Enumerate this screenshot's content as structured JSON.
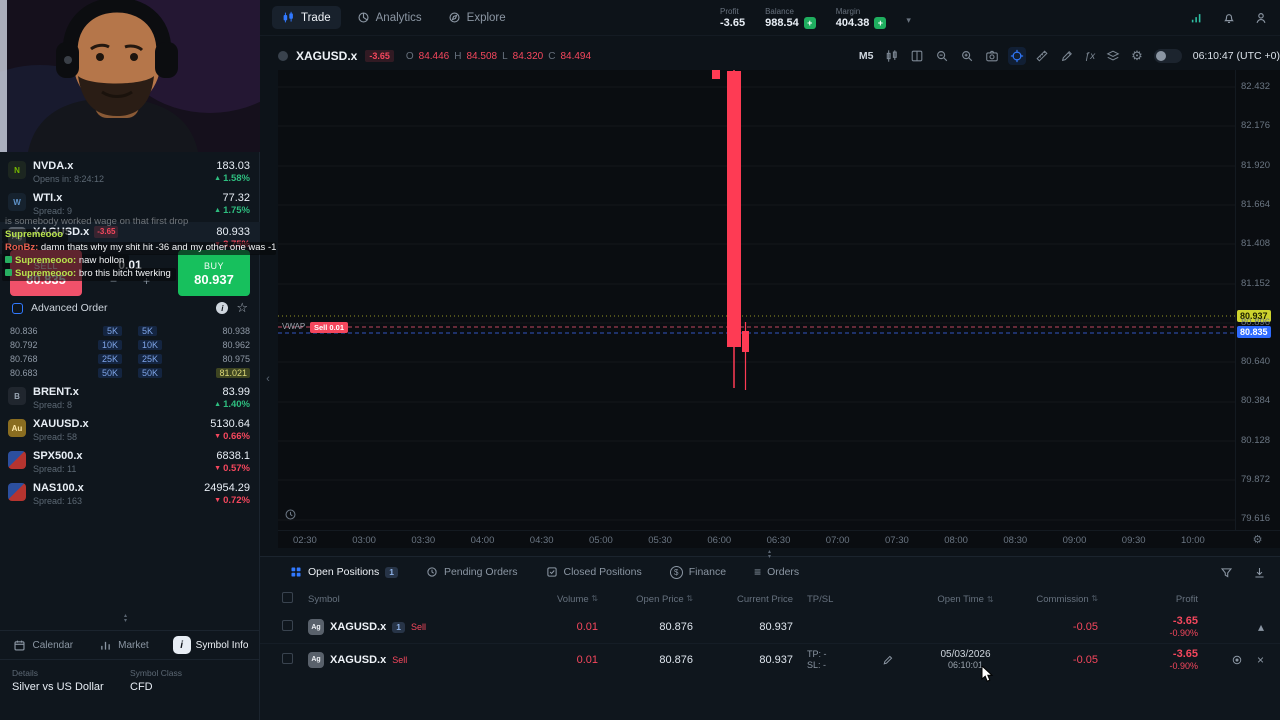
{
  "colors": {
    "accent_blue": "#3179ff",
    "buy_green": "#17c05d",
    "sell_red": "#f0516a",
    "loss_red": "#f5475d",
    "gain_green": "#2ebd7f",
    "ask_tag_yellow": "#cdd32e",
    "bid_tag_blue": "#2f6bff"
  },
  "topbar": {
    "nav": [
      {
        "label": "Trade"
      },
      {
        "label": "Analytics"
      },
      {
        "label": "Explore"
      }
    ],
    "stats": {
      "profit_label": "Profit",
      "profit": "-3.65",
      "balance_label": "Balance",
      "balance": "988.54",
      "margin_label": "Margin",
      "margin": "404.38"
    }
  },
  "watchlist": [
    {
      "symbol": "NVDA.x",
      "price": "183.03",
      "change": "1.58%",
      "sub": "Opens in: 8:24:12",
      "icon": "N"
    },
    {
      "symbol": "WTI.x",
      "price": "77.32",
      "change": "1.75%",
      "sub": "Spread: 9",
      "icon": "W"
    },
    {
      "symbol": "XAGUSD.x",
      "price": "80.933",
      "change": "3.75%",
      "sub": "",
      "icon": "Ag",
      "pl": "-3.65"
    },
    {
      "symbol": "BRENT.x",
      "price": "83.99",
      "change": "1.40%",
      "sub": "Spread: 8",
      "icon": "B"
    },
    {
      "symbol": "XAUUSD.x",
      "price": "5130.64",
      "change": "0.66%",
      "sub": "Spread: 58",
      "icon": "Au"
    },
    {
      "symbol": "SPX500.x",
      "price": "6838.1",
      "change": "0.57%",
      "sub": "Spread: 11",
      "icon": ""
    },
    {
      "symbol": "NAS100.x",
      "price": "24954.29",
      "change": "0.72%",
      "sub": "Spread: 163",
      "icon": ""
    }
  ],
  "trade": {
    "sell_label": "SELL",
    "sell_price": "80.835",
    "qty": "0.01",
    "buy_label": "BUY",
    "buy_price": "80.937",
    "advanced_label": "Advanced Order",
    "depth": [
      {
        "bid": "80.836",
        "bid_size": "5K",
        "ask_size": "5K",
        "ask": "80.938"
      },
      {
        "bid": "80.792",
        "bid_size": "10K",
        "ask_size": "10K",
        "ask": "80.962"
      },
      {
        "bid": "80.768",
        "bid_size": "25K",
        "ask_size": "25K",
        "ask": "80.975"
      },
      {
        "bid": "80.683",
        "bid_size": "50K",
        "ask_size": "50K",
        "ask": "81.021"
      }
    ]
  },
  "chat": [
    {
      "name": "",
      "text": "is somebody worked wage on that first drop"
    },
    {
      "name": "Supremeooo",
      "text": ""
    },
    {
      "name": "RonBz:",
      "text": "damn thats why my shit hit -36 and my other one was -10"
    },
    {
      "name": "Supremeooo:",
      "text": "naw hollon"
    },
    {
      "name": "Supremeooo:",
      "text": "bro this bitch twerking"
    }
  ],
  "sidebar_bottom": {
    "tabs": [
      {
        "label": "Calendar"
      },
      {
        "label": "Market"
      },
      {
        "label": "Symbol Info"
      }
    ],
    "details_label": "Details",
    "details_value": "Silver vs US Dollar",
    "class_label": "Symbol Class",
    "class_value": "CFD"
  },
  "chart": {
    "symbol": "XAGUSD.x",
    "pl_chip": "-3.65",
    "ohlc": {
      "o_l": "O",
      "o": "84.446",
      "h_l": "H",
      "h": "84.508",
      "l_l": "L",
      "l": "84.320",
      "c_l": "C",
      "c": "84.494"
    },
    "timeframe": "M5",
    "clock": "06:10:47 (UTC +0)",
    "price_ticks": [
      "82.432",
      "82.176",
      "81.920",
      "81.664",
      "81.408",
      "81.152",
      "80.896",
      "80.640",
      "80.384",
      "80.128",
      "79.872",
      "79.616"
    ],
    "time_ticks": [
      "02:30",
      "03:00",
      "03:30",
      "04:00",
      "04:30",
      "05:00",
      "05:30",
      "06:00",
      "06:30",
      "07:00",
      "07:30",
      "08:00",
      "08:30",
      "09:00",
      "09:30",
      "10:00"
    ],
    "ask_tag": "80.937",
    "bid_tag": "80.835",
    "vwap_label": "VWAP",
    "position_chip": "Sell 0.01"
  },
  "positions": {
    "sym_icon": "Ag",
    "tabs": [
      {
        "label": "Open Positions",
        "count": "1"
      },
      {
        "label": "Pending Orders"
      },
      {
        "label": "Closed Positions"
      },
      {
        "label": "Finance"
      },
      {
        "label": "Orders"
      }
    ],
    "columns": {
      "symbol": "Symbol",
      "volume": "Volume",
      "open_price": "Open Price",
      "current_price": "Current Price",
      "tpsl": "TP/SL",
      "open_time": "Open Time",
      "commission": "Commission",
      "profit": "Profit"
    },
    "group": {
      "symbol": "XAGUSD.x",
      "count": "1",
      "side": "Sell",
      "volume": "0.01",
      "open_price": "80.876",
      "current_price": "80.937",
      "commission": "-0.05",
      "profit": "-3.65",
      "profit_pct": "-0.90%"
    },
    "row": {
      "symbol": "XAGUSD.x",
      "side": "Sell",
      "volume": "0.01",
      "open_price": "80.876",
      "current_price": "80.937",
      "tp": "TP: -",
      "sl": "SL: -",
      "open_date": "05/03/2026",
      "open_time": "06:10:01",
      "commission": "-0.05",
      "profit": "-3.65",
      "profit_pct": "-0.90%"
    }
  },
  "icons": {
    "up": "▲",
    "down": "▼",
    "minus": "−",
    "plus": "+",
    "star": "☆",
    "gear": "⚙",
    "chevron_down": "▾",
    "chevron_up": "▴",
    "close": "×",
    "fx": "ƒx",
    "orders": "≡",
    "collapse": "‹",
    "finance": "$",
    "info": "i"
  }
}
